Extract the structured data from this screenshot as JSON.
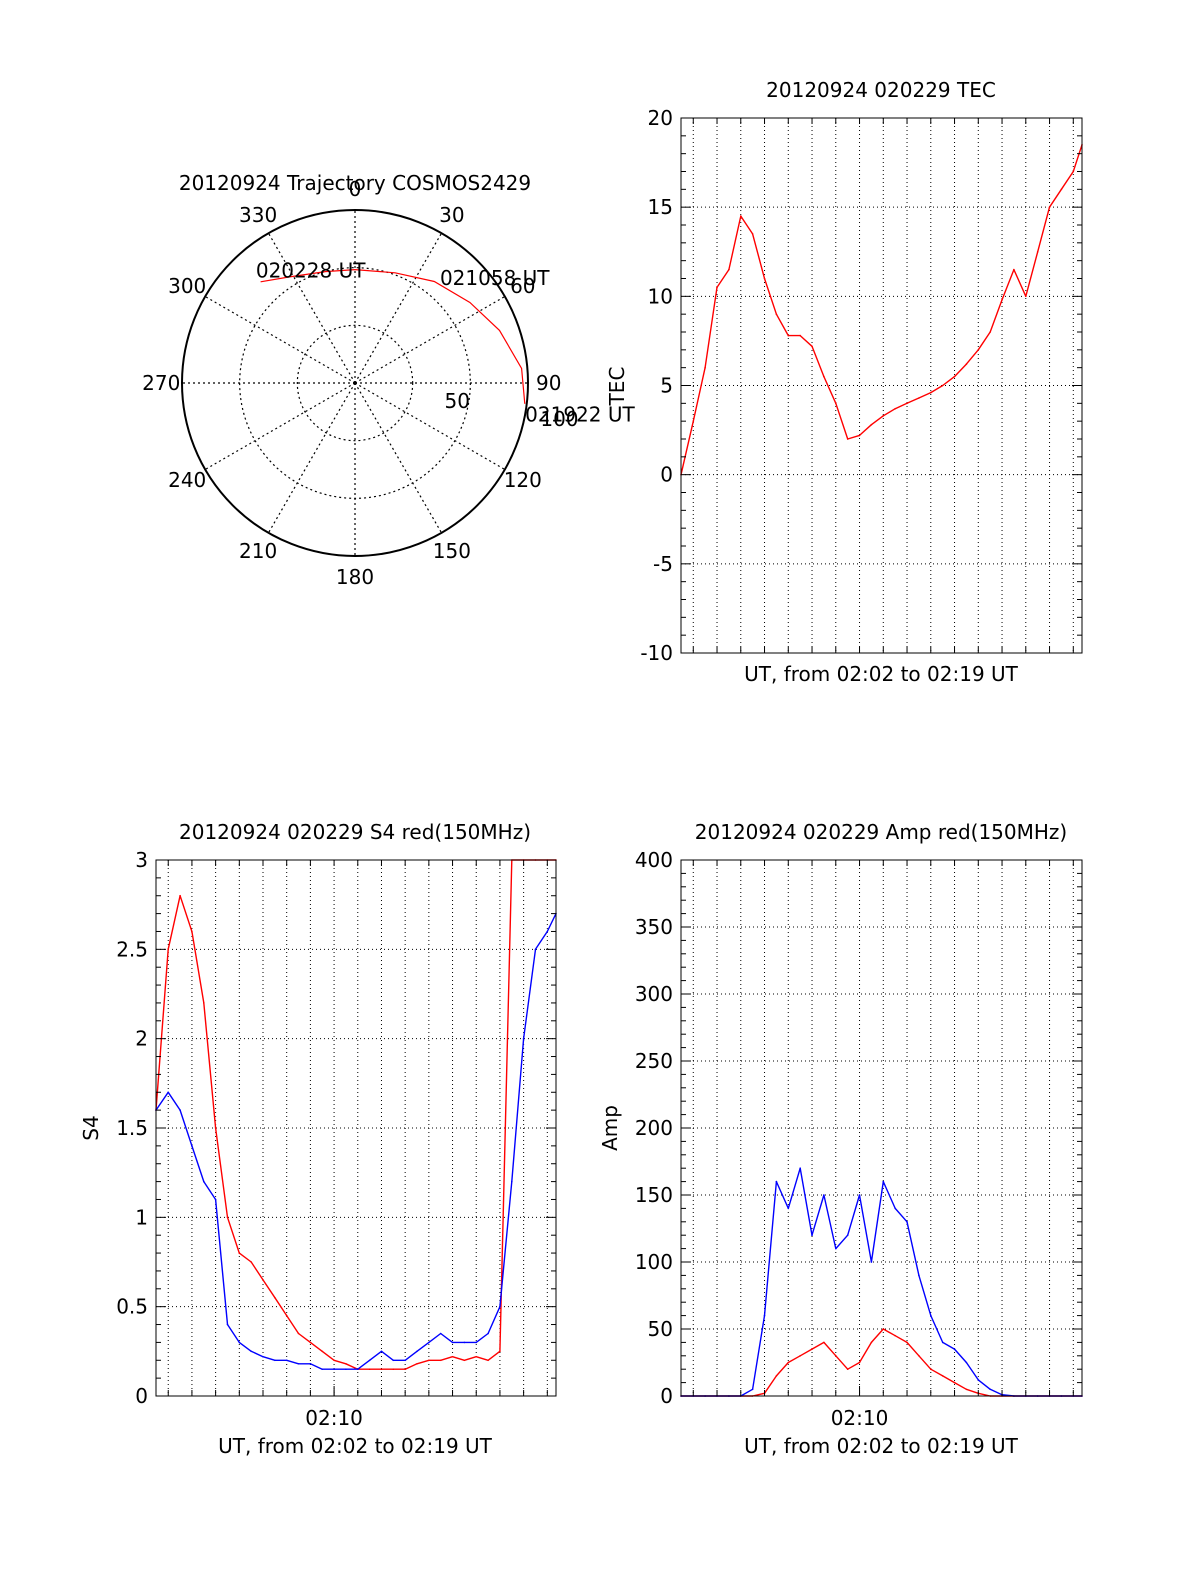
{
  "chart_data": [
    {
      "type": "polar",
      "title": "20120924 Trajectory COSMOS2429",
      "azimuth_labels": [
        "0",
        "30",
        "60",
        "90",
        "120",
        "150",
        "180",
        "210",
        "240",
        "270",
        "300",
        "330"
      ],
      "radius_labels": [
        "50",
        "100"
      ],
      "zenith_rings": [
        30,
        60
      ],
      "max_zenith": 90,
      "series": [
        {
          "color": "#ff0000",
          "points": [
            {
              "azimuth": 317,
              "zenith": 72
            },
            {
              "azimuth": 328,
              "zenith": 65
            },
            {
              "azimuth": 345,
              "zenith": 60
            },
            {
              "azimuth": 0,
              "zenith": 59
            },
            {
              "azimuth": 20,
              "zenith": 61
            },
            {
              "azimuth": 38,
              "zenith": 67
            },
            {
              "azimuth": 55,
              "zenith": 73
            },
            {
              "azimuth": 70,
              "zenith": 80
            },
            {
              "azimuth": 85,
              "zenith": 87
            },
            {
              "azimuth": 97,
              "zenith": 89
            }
          ]
        }
      ],
      "annotations": [
        {
          "text": "020228 UT",
          "azimuth": 320,
          "zenith": 77
        },
        {
          "text": "021058 UT",
          "azimuth": 40,
          "zenith": 72
        },
        {
          "text": "021922 UT",
          "azimuth": 100,
          "zenith": 92
        }
      ]
    },
    {
      "type": "line",
      "title": "20120924 020229 TEC",
      "xlabel": "UT, from 02:02 to 02:19 UT",
      "ylabel": "TEC",
      "xlim": [
        "02:02:29",
        "02:19:22"
      ],
      "ylim": [
        -10,
        20
      ],
      "yticks": [
        "-10",
        "-5",
        "0",
        "5",
        "10",
        "15",
        "20"
      ],
      "grid": true,
      "series": [
        {
          "color": "#ff0000",
          "x": [
            "02:02:29",
            "02:03:00",
            "02:03:30",
            "02:04:00",
            "02:04:30",
            "02:05:00",
            "02:05:30",
            "02:06:00",
            "02:06:30",
            "02:07:00",
            "02:07:30",
            "02:08:00",
            "02:08:30",
            "02:09:00",
            "02:09:30",
            "02:10:00",
            "02:10:30",
            "02:11:00",
            "02:11:30",
            "02:12:00",
            "02:12:30",
            "02:13:00",
            "02:13:30",
            "02:14:00",
            "02:14:30",
            "02:15:00",
            "02:15:30",
            "02:16:00",
            "02:16:30",
            "02:17:00",
            "02:17:30",
            "02:18:00",
            "02:18:30",
            "02:19:00",
            "02:19:22"
          ],
          "values": [
            0.0,
            3.0,
            6.0,
            10.5,
            11.5,
            14.5,
            13.5,
            11.0,
            9.0,
            7.8,
            7.8,
            7.2,
            5.5,
            4.0,
            2.0,
            2.2,
            2.8,
            3.3,
            3.7,
            4.0,
            4.3,
            4.6,
            5.0,
            5.5,
            6.2,
            7.0,
            8.0,
            9.8,
            11.5,
            10.0,
            12.5,
            15.0,
            16.0,
            17.0,
            18.5
          ]
        }
      ]
    },
    {
      "type": "line",
      "title": "20120924 020229 S4 red(150MHz)",
      "xlabel": "UT, from 02:02 to 02:19 UT",
      "ylabel": "S4",
      "xlim": [
        "02:02:29",
        "02:19:22"
      ],
      "ylim": [
        0,
        3
      ],
      "xticks": [
        "02:10"
      ],
      "yticks": [
        "0",
        "0.5",
        "1",
        "1.5",
        "2",
        "2.5",
        "3"
      ],
      "grid": true,
      "series": [
        {
          "color": "#ff0000",
          "x": [
            "02:02:29",
            "02:03:00",
            "02:03:30",
            "02:04:00",
            "02:04:30",
            "02:05:00",
            "02:05:30",
            "02:06:00",
            "02:06:30",
            "02:07:00",
            "02:07:30",
            "02:08:00",
            "02:08:30",
            "02:09:00",
            "02:09:30",
            "02:10:00",
            "02:10:30",
            "02:11:00",
            "02:11:30",
            "02:12:00",
            "02:12:30",
            "02:13:00",
            "02:13:30",
            "02:14:00",
            "02:14:30",
            "02:15:00",
            "02:15:30",
            "02:16:00",
            "02:16:30",
            "02:17:00",
            "02:17:30",
            "02:18:00",
            "02:18:30",
            "02:19:00",
            "02:19:22"
          ],
          "values": [
            1.6,
            2.5,
            2.8,
            2.6,
            2.2,
            1.5,
            1.0,
            0.8,
            0.75,
            0.65,
            0.55,
            0.45,
            0.35,
            0.3,
            0.25,
            0.2,
            0.18,
            0.15,
            0.15,
            0.15,
            0.15,
            0.15,
            0.18,
            0.2,
            0.2,
            0.22,
            0.2,
            0.22,
            0.2,
            0.25,
            3.0,
            3.0,
            3.0,
            3.0,
            3.0
          ]
        },
        {
          "color": "#0000ff",
          "x": [
            "02:02:29",
            "02:03:00",
            "02:03:30",
            "02:04:00",
            "02:04:30",
            "02:05:00",
            "02:05:30",
            "02:06:00",
            "02:06:30",
            "02:07:00",
            "02:07:30",
            "02:08:00",
            "02:08:30",
            "02:09:00",
            "02:09:30",
            "02:10:00",
            "02:10:30",
            "02:11:00",
            "02:11:30",
            "02:12:00",
            "02:12:30",
            "02:13:00",
            "02:13:30",
            "02:14:00",
            "02:14:30",
            "02:15:00",
            "02:15:30",
            "02:16:00",
            "02:16:30",
            "02:17:00",
            "02:17:30",
            "02:18:00",
            "02:18:30",
            "02:19:00",
            "02:19:22"
          ],
          "values": [
            1.6,
            1.7,
            1.6,
            1.4,
            1.2,
            1.1,
            0.4,
            0.3,
            0.25,
            0.22,
            0.2,
            0.2,
            0.18,
            0.18,
            0.15,
            0.15,
            0.15,
            0.15,
            0.2,
            0.25,
            0.2,
            0.2,
            0.25,
            0.3,
            0.35,
            0.3,
            0.3,
            0.3,
            0.35,
            0.5,
            1.2,
            2.0,
            2.5,
            2.6,
            2.7
          ]
        }
      ]
    },
    {
      "type": "line",
      "title": "20120924 020229 Amp red(150MHz)",
      "xlabel": "UT, from 02:02 to 02:19 UT",
      "ylabel": "Amp",
      "xlim": [
        "02:02:29",
        "02:19:22"
      ],
      "ylim": [
        0,
        400
      ],
      "xticks": [
        "02:10"
      ],
      "yticks": [
        "0",
        "50",
        "100",
        "150",
        "200",
        "250",
        "300",
        "350",
        "400"
      ],
      "grid": true,
      "series": [
        {
          "color": "#ff0000",
          "x": [
            "02:02:29",
            "02:03:00",
            "02:03:30",
            "02:04:00",
            "02:04:30",
            "02:05:00",
            "02:05:30",
            "02:06:00",
            "02:06:30",
            "02:07:00",
            "02:07:30",
            "02:08:00",
            "02:08:30",
            "02:09:00",
            "02:09:30",
            "02:10:00",
            "02:10:30",
            "02:11:00",
            "02:11:30",
            "02:12:00",
            "02:12:30",
            "02:13:00",
            "02:13:30",
            "02:14:00",
            "02:14:30",
            "02:15:00",
            "02:15:30",
            "02:16:00",
            "02:16:30",
            "02:17:00",
            "02:17:30",
            "02:18:00",
            "02:18:30",
            "02:19:00",
            "02:19:22"
          ],
          "values": [
            0,
            0,
            0,
            0,
            0,
            0,
            0,
            2,
            15,
            25,
            30,
            35,
            40,
            30,
            20,
            25,
            40,
            50,
            45,
            40,
            30,
            20,
            15,
            10,
            5,
            2,
            0,
            0,
            0,
            0,
            0,
            0,
            0,
            0,
            0
          ]
        },
        {
          "color": "#0000ff",
          "x": [
            "02:02:29",
            "02:03:00",
            "02:03:30",
            "02:04:00",
            "02:04:30",
            "02:05:00",
            "02:05:30",
            "02:06:00",
            "02:06:30",
            "02:07:00",
            "02:07:30",
            "02:08:00",
            "02:08:30",
            "02:09:00",
            "02:09:30",
            "02:10:00",
            "02:10:30",
            "02:11:00",
            "02:11:30",
            "02:12:00",
            "02:12:30",
            "02:13:00",
            "02:13:30",
            "02:14:00",
            "02:14:30",
            "02:15:00",
            "02:15:30",
            "02:16:00",
            "02:16:30",
            "02:17:00",
            "02:17:30",
            "02:18:00",
            "02:18:30",
            "02:19:00",
            "02:19:22"
          ],
          "values": [
            0,
            0,
            0,
            0,
            0,
            0,
            5,
            60,
            160,
            140,
            170,
            120,
            150,
            110,
            120,
            150,
            100,
            160,
            140,
            130,
            90,
            60,
            40,
            35,
            25,
            12,
            5,
            1,
            0,
            0,
            0,
            0,
            0,
            0,
            0
          ]
        }
      ]
    }
  ]
}
